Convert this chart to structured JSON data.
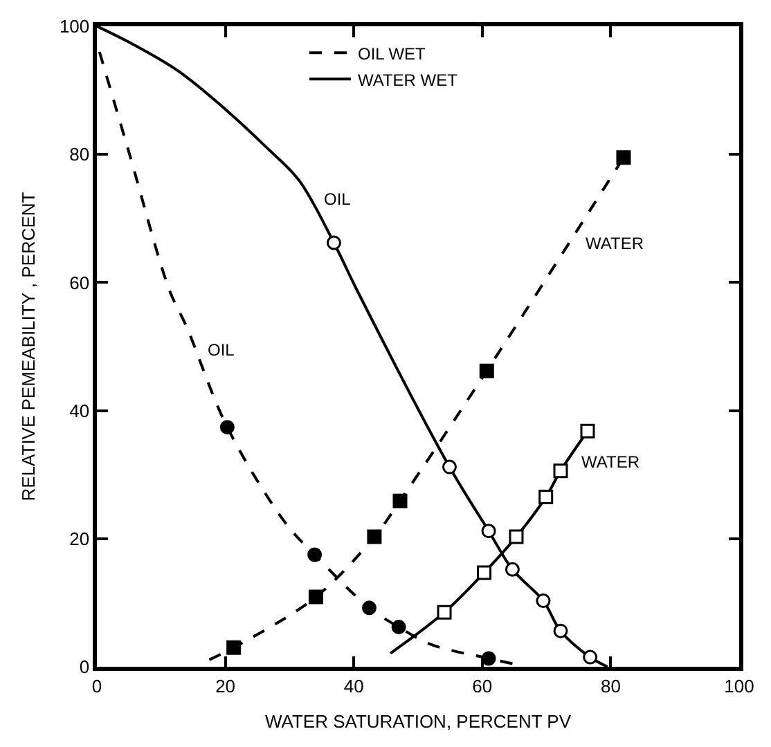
{
  "chart_data": {
    "type": "line",
    "xlabel": "WATER SATURATION, PERCENT PV",
    "ylabel": "RELATIVE PEMEABILITY , PERCENT",
    "xlim": [
      0,
      100
    ],
    "xticks": [
      0,
      20,
      40,
      60,
      80,
      100
    ],
    "ylim": [
      0,
      100
    ],
    "yticks": [
      0,
      20,
      40,
      60,
      80,
      100
    ],
    "legend": "top",
    "series": [
      {
        "name": "OIL WET",
        "line_style": "dashed",
        "color": "#000000",
        "x": [
          0.4,
          5,
          11.3,
          14,
          20.3,
          29.4,
          33.9,
          42.4,
          47,
          52,
          61,
          66
        ],
        "values": [
          96,
          80.3,
          58.8,
          53,
          37.4,
          22.4,
          17.5,
          9.2,
          6.2,
          3.5,
          1.3,
          0.2
        ]
      },
      {
        "name": "WATER WET",
        "line_style": "solid",
        "color": "#000000",
        "x": [
          0,
          5.6,
          12.7,
          19.6,
          26.5,
          31.5,
          36.9,
          40.5,
          54.9,
          61,
          64.7,
          69.5,
          72.2,
          76.8,
          79.5
        ],
        "values": [
          100,
          97.2,
          93,
          87.4,
          81,
          75.9,
          66.2,
          58.8,
          31.2,
          21.2,
          15.2,
          10.3,
          5.6,
          1.5,
          0
        ]
      },
      {
        "line_style": "dashed",
        "color": "#000000",
        "x": [
          17.5,
          21.3,
          34.1,
          43.2,
          47.2,
          60.7,
          82
        ],
        "values": [
          1.1,
          3.0,
          10.9,
          20.3,
          25.9,
          46.2,
          79.5
        ]
      },
      {
        "line_style": "solid",
        "color": "#000000",
        "x": [
          45.7,
          54.1,
          60.3,
          65.3,
          69.9,
          72.2,
          76.4
        ],
        "values": [
          2.1,
          8.5,
          14.7,
          20.3,
          26.5,
          30.6,
          36.8
        ]
      },
      {
        "type": "scatter",
        "marker": "circle",
        "color": "#000000",
        "x": [
          20.3,
          33.9,
          42.4,
          47,
          61
        ],
        "values": [
          37.4,
          17.5,
          9.2,
          6.2,
          1.3
        ]
      },
      {
        "type": "scatter",
        "marker": "square",
        "color": "#000000",
        "x": [
          21.3,
          34.1,
          43.2,
          47.2,
          60.7,
          82
        ],
        "values": [
          3.0,
          10.9,
          20.3,
          25.9,
          46.2,
          79.5
        ]
      },
      {
        "type": "scatter",
        "marker": "circle",
        "color": "#ffffff",
        "x": [
          36.9,
          54.9,
          61,
          64.7,
          69.5,
          72.2,
          76.8
        ],
        "values": [
          66.2,
          31.2,
          21.2,
          15.2,
          10.3,
          5.6,
          1.5
        ]
      },
      {
        "type": "scatter",
        "marker": "square",
        "color": "#ffffff",
        "x": [
          54.1,
          60.3,
          65.3,
          69.9,
          72.2,
          76.4
        ],
        "values": [
          8.5,
          14.7,
          20.3,
          26.5,
          30.6,
          36.8
        ]
      }
    ],
    "annotations": [
      "OIL",
      "OIL",
      "WATER",
      "WATER"
    ]
  }
}
